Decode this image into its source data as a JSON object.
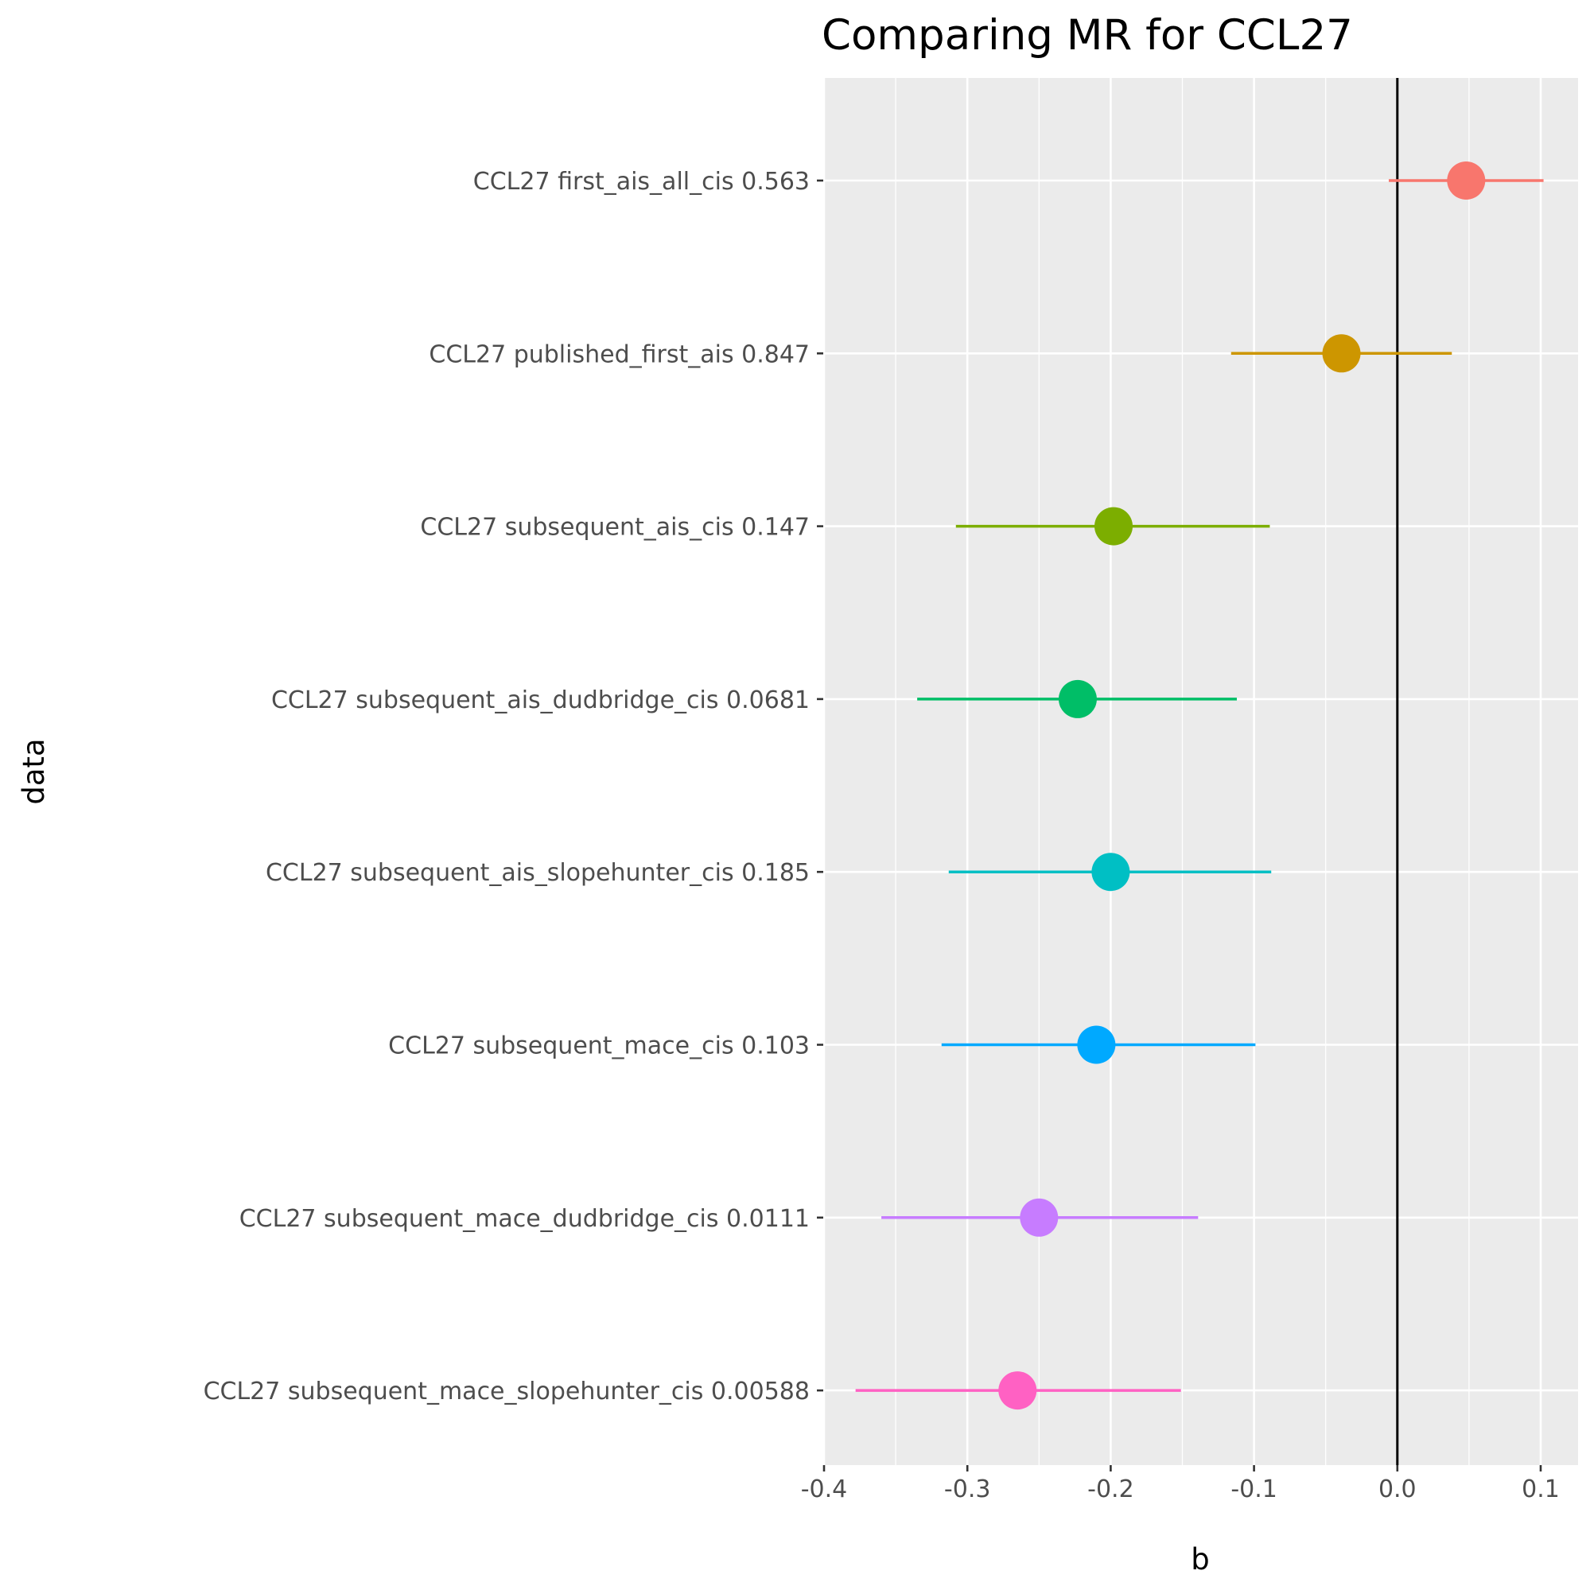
{
  "chart_data": {
    "type": "forest",
    "title": "Comparing MR for CCL27",
    "xlabel": "b",
    "ylabel": "data",
    "xlim": [
      -0.4,
      0.1
    ],
    "x_ticks": [
      -0.4,
      -0.3,
      -0.2,
      -0.1,
      0.0,
      0.1
    ],
    "x_tick_labels": [
      "-0.4",
      "-0.3",
      "-0.2",
      "-0.1",
      "0.0",
      "0.1"
    ],
    "reference_line": 0,
    "grid": true,
    "rows": [
      {
        "label": "CCL27 subsequent_mace_slopehunter_cis 0.00588",
        "b": -0.265,
        "lo": -0.378,
        "hi": -0.151,
        "color": "#FF61C3"
      },
      {
        "label": "CCL27 subsequent_mace_dudbridge_cis 0.0111",
        "b": -0.25,
        "lo": -0.36,
        "hi": -0.139,
        "color": "#C77CFF"
      },
      {
        "label": "CCL27 subsequent_mace_cis 0.103",
        "b": -0.21,
        "lo": -0.318,
        "hi": -0.099,
        "color": "#00A9FF"
      },
      {
        "label": "CCL27 subsequent_ais_slopehunter_cis 0.185",
        "b": -0.2,
        "lo": -0.313,
        "hi": -0.088,
        "color": "#00BFC4"
      },
      {
        "label": "CCL27 subsequent_ais_dudbridge_cis 0.0681",
        "b": -0.223,
        "lo": -0.335,
        "hi": -0.112,
        "color": "#00BE67"
      },
      {
        "label": "CCL27 subsequent_ais_cis 0.147",
        "b": -0.198,
        "lo": -0.308,
        "hi": -0.089,
        "color": "#7CAE00"
      },
      {
        "label": "CCL27 published_first_ais 0.847",
        "b": -0.039,
        "lo": -0.116,
        "hi": 0.038,
        "color": "#CD9600"
      },
      {
        "label": "CCL27 first_ais_all_cis 0.563",
        "b": 0.048,
        "lo": -0.006,
        "hi": 0.102,
        "color": "#F8766D"
      }
    ]
  }
}
